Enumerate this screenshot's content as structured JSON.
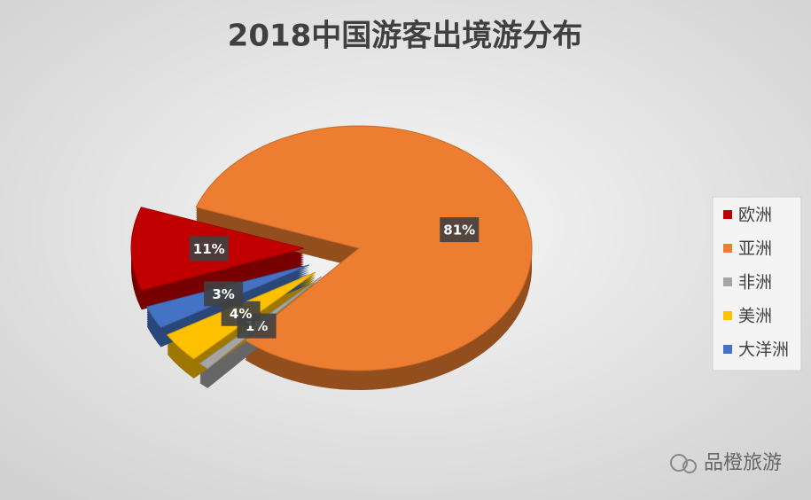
{
  "chart_data": {
    "type": "pie",
    "title": "2018中国游客出境游分布",
    "categories": [
      "欧洲",
      "亚洲",
      "非洲",
      "美洲",
      "大洋洲"
    ],
    "values": [
      11,
      81,
      1,
      4,
      3
    ],
    "value_labels": [
      "11%",
      "81%",
      "1%",
      "4%",
      "3%"
    ],
    "colors": [
      "#c00000",
      "#ed7d31",
      "#a5a5a5",
      "#ffc000",
      "#4472c4"
    ],
    "legend": "right"
  },
  "watermark": "品橙旅游"
}
